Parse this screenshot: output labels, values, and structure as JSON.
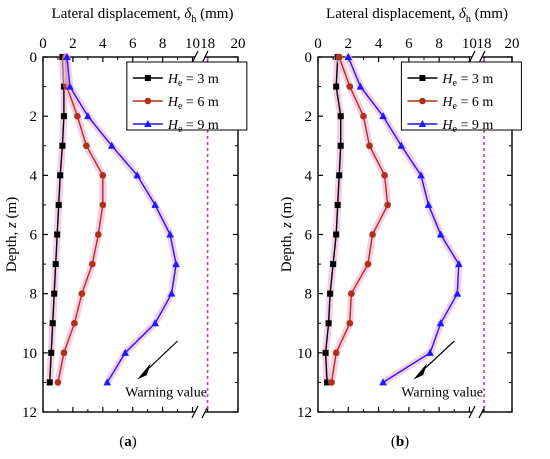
{
  "chart_data": [
    {
      "type": "line",
      "panel_label": "a",
      "xlabel_prefix": "Lateral displacement, ",
      "xlabel_symbol": "δ",
      "xlabel_subscript": "h",
      "xlabel_unit": " (mm)",
      "ylabel_prefix": "Depth, ",
      "ylabel_symbol": "z",
      "ylabel_unit": "  (m)",
      "x_ticks": [
        "0",
        "2",
        "4",
        "6",
        "8",
        "10",
        "18",
        "20"
      ],
      "y_ticks": [
        "0",
        "2",
        "4",
        "6",
        "8",
        "10",
        "12"
      ],
      "xlim_left": [
        0,
        10.5
      ],
      "xlim_right": [
        17.5,
        20
      ],
      "ylim": [
        0,
        12
      ],
      "warning_value": 18,
      "warning_label": "Warning value",
      "legend_position": "top-right",
      "series": [
        {
          "legend_sym": "H",
          "legend_sub": "e",
          "legend_rest": " = 3 m",
          "color": "#000000",
          "marker": "square",
          "x": [
            1.3,
            1.4,
            1.4,
            1.3,
            1.15,
            1.05,
            0.95,
            0.85,
            0.75,
            0.65,
            0.55,
            0.45
          ],
          "y": [
            0,
            1,
            2,
            3,
            4,
            5,
            6,
            7,
            8,
            9,
            10,
            11
          ]
        },
        {
          "legend_sym": "H",
          "legend_sub": "e",
          "legend_rest": " = 6 m",
          "color": "#b03018",
          "marker": "circle",
          "x": [
            1.5,
            1.6,
            2.3,
            2.9,
            4.0,
            4.0,
            3.7,
            3.3,
            2.6,
            2.1,
            1.4,
            1.0
          ],
          "y": [
            0,
            1,
            2,
            3,
            4,
            5,
            6,
            7,
            8,
            9,
            10,
            11
          ]
        },
        {
          "legend_sym": "H",
          "legend_sub": "e",
          "legend_rest": " = 9 m",
          "color": "#1a1aff",
          "marker": "triangle",
          "x": [
            1.6,
            1.8,
            3.0,
            4.6,
            6.3,
            7.5,
            8.5,
            8.9,
            8.6,
            7.5,
            5.5,
            4.3
          ],
          "y": [
            0,
            1,
            2,
            3,
            4,
            5,
            6,
            7,
            8,
            9,
            10,
            11
          ]
        }
      ]
    },
    {
      "type": "line",
      "panel_label": "b",
      "xlabel_prefix": "Lateral displacement, ",
      "xlabel_symbol": "δ",
      "xlabel_subscript": "h",
      "xlabel_unit": " (mm)",
      "ylabel_prefix": "Depth, ",
      "ylabel_symbol": "z",
      "ylabel_unit": "  (m)",
      "x_ticks": [
        "0",
        "2",
        "4",
        "6",
        "8",
        "10",
        "18",
        "20"
      ],
      "y_ticks": [
        "0",
        "2",
        "4",
        "6",
        "8",
        "10",
        "12"
      ],
      "xlim_left": [
        0,
        10.5
      ],
      "xlim_right": [
        17.5,
        20
      ],
      "ylim": [
        0,
        12
      ],
      "warning_value": 18,
      "warning_label": "Warning value",
      "legend_position": "top-right",
      "series": [
        {
          "legend_sym": "H",
          "legend_sub": "e",
          "legend_rest": " = 3 m",
          "color": "#000000",
          "marker": "square",
          "x": [
            1.3,
            1.2,
            1.5,
            1.5,
            1.4,
            1.3,
            1.2,
            1.0,
            0.8,
            0.7,
            0.5,
            0.6
          ],
          "y": [
            0,
            1,
            2,
            3,
            4,
            5,
            6,
            7,
            8,
            9,
            10,
            11
          ]
        },
        {
          "legend_sym": "H",
          "legend_sub": "e",
          "legend_rest": " = 6 m",
          "color": "#b03018",
          "marker": "circle",
          "x": [
            1.4,
            2.1,
            3.0,
            3.4,
            4.4,
            4.6,
            3.6,
            3.3,
            2.2,
            2.1,
            1.2,
            0.9
          ],
          "y": [
            0,
            1,
            2,
            3,
            4,
            5,
            6,
            7,
            8,
            9,
            10,
            11
          ]
        },
        {
          "legend_sym": "H",
          "legend_sub": "e",
          "legend_rest": " = 9 m",
          "color": "#1a1aff",
          "marker": "triangle",
          "x": [
            2.0,
            2.8,
            4.3,
            5.5,
            6.8,
            7.3,
            8.1,
            9.3,
            9.2,
            8.1,
            7.4,
            4.3
          ],
          "y": [
            0,
            1,
            2,
            3,
            4,
            5,
            6,
            7,
            8,
            9,
            10,
            11
          ]
        }
      ]
    }
  ]
}
